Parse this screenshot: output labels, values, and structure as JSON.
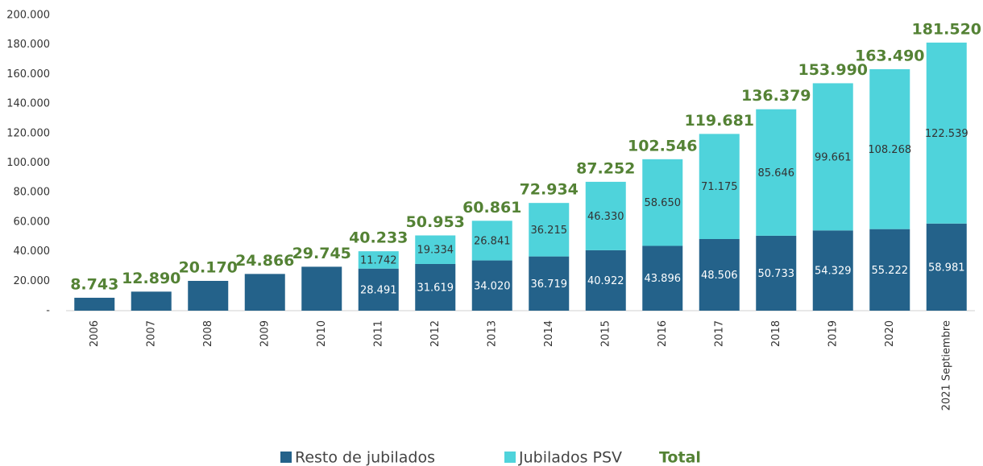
{
  "chart_data": {
    "type": "stacked_bar",
    "categories": [
      "2006",
      "2007",
      "2008",
      "2009",
      "2010",
      "2011",
      "2012",
      "2013",
      "2014",
      "2015",
      "2016",
      "2017",
      "2018",
      "2019",
      "2020",
      "2021 Septiembre"
    ],
    "series": [
      {
        "name": "Resto de jubilados",
        "color": "#24628a",
        "values": [
          8743,
          12890,
          20170,
          24866,
          29745,
          28491,
          31619,
          34020,
          36719,
          40922,
          43896,
          48506,
          50733,
          54329,
          55222,
          58981
        ],
        "value_labels": [
          null,
          null,
          null,
          null,
          null,
          "28.491",
          "31.619",
          "34.020",
          "36.719",
          "40.922",
          "43.896",
          "48.506",
          "50.733",
          "54.329",
          "55.222",
          "58.981"
        ]
      },
      {
        "name": "Jubilados PSV",
        "color": "#4fd3db",
        "values": [
          null,
          null,
          null,
          null,
          null,
          11742,
          19334,
          26841,
          36215,
          46330,
          58650,
          71175,
          85646,
          99661,
          108268,
          122539
        ],
        "value_labels": [
          null,
          null,
          null,
          null,
          null,
          "11.742",
          "19.334",
          "26.841",
          "36.215",
          "46.330",
          "58.650",
          "71.175",
          "85.646",
          "99.661",
          "108.268",
          "122.539"
        ]
      },
      {
        "name": "Total",
        "color": "#548235",
        "values": [
          8743,
          12890,
          20170,
          24866,
          29745,
          40233,
          50953,
          60861,
          72934,
          87252,
          102546,
          119681,
          136379,
          153990,
          163490,
          181520
        ],
        "value_labels": [
          "8.743",
          "12.890",
          "20.170",
          "24.866",
          "29.745",
          "40.233",
          "50.953",
          "60.861",
          "72.934",
          "87.252",
          "102.546",
          "119.681",
          "136.379",
          "153.990",
          "163.490",
          "181.520"
        ]
      }
    ],
    "ylim": [
      0,
      200000
    ],
    "yticks": [
      {
        "value": 0,
        "label": "-"
      },
      {
        "value": 20000,
        "label": "20.000"
      },
      {
        "value": 40000,
        "label": "40.000"
      },
      {
        "value": 60000,
        "label": "60.000"
      },
      {
        "value": 80000,
        "label": "80.000"
      },
      {
        "value": 100000,
        "label": "100.000"
      },
      {
        "value": 120000,
        "label": "120.000"
      },
      {
        "value": 140000,
        "label": "140.000"
      },
      {
        "value": 160000,
        "label": "160.000"
      },
      {
        "value": 180000,
        "label": "180.000"
      },
      {
        "value": 200000,
        "label": "200.000"
      }
    ],
    "grid": false
  }
}
